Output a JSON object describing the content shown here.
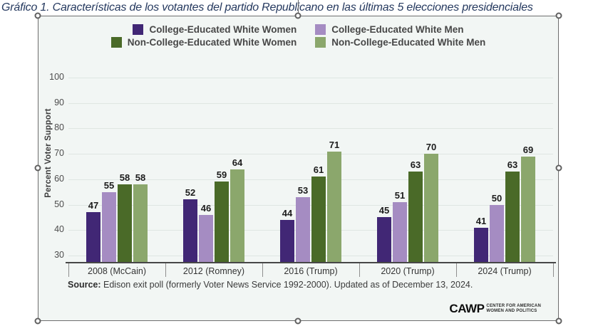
{
  "page": {
    "title": "Gráfico 1. Características de los votantes del partido Republicano en las últimas 5 elecciones presidenciales"
  },
  "chart_data": {
    "type": "bar",
    "title": "",
    "categories": [
      "2008 (McCain)",
      "2012 (Romney)",
      "2016 (Trump)",
      "2020 (Trump)",
      "2024 (Trump)"
    ],
    "series": [
      {
        "name": "College-Educated White Women",
        "color": "#412775",
        "values": [
          47,
          52,
          44,
          45,
          41
        ]
      },
      {
        "name": "College-Educated White Men",
        "color": "#a58cc2",
        "values": [
          55,
          46,
          53,
          51,
          50
        ]
      },
      {
        "name": "Non-College-Educated White Women",
        "color": "#4a6a28",
        "values": [
          58,
          59,
          61,
          63,
          63
        ]
      },
      {
        "name": "Non-College-Educated White Men",
        "color": "#8ba76c",
        "values": [
          58,
          64,
          71,
          70,
          69
        ]
      }
    ],
    "xlabel": "",
    "ylabel": "Percent Voter Support",
    "ylim": [
      30,
      100
    ],
    "yticks": [
      30,
      40,
      50,
      60,
      70,
      80,
      90,
      100
    ],
    "grid": true,
    "legend_position": "top",
    "value_labels": true
  },
  "source": {
    "label": "Source:",
    "text": " Edison exit poll (formerly Voter News Service 1992-2000). Updated as of December 13, 2024."
  },
  "logo": {
    "name": "CAWP",
    "tagline_line1": "CENTER FOR AMERICAN",
    "tagline_line2": "WOMEN AND POLITICS"
  }
}
